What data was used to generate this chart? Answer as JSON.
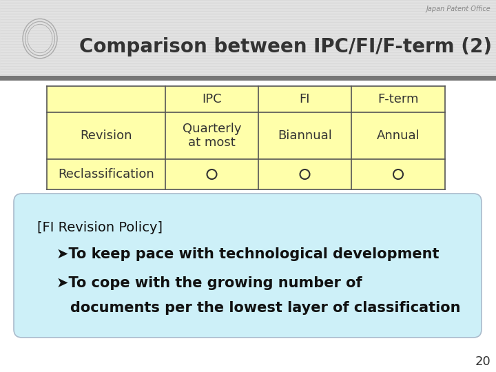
{
  "title": "Comparison between IPC/FI/F-term (2)",
  "watermark": "Japan Patent Office",
  "bg_color": "#ffffff",
  "header_line_color": "#cccccc",
  "header_bg": "#d8d8d8",
  "dark_band_color": "#888888",
  "table_bg": "#ffffaa",
  "table_border": "#555555",
  "box_bg": "#cdf0f8",
  "box_border": "#aacccc",
  "title_color": "#333333",
  "table_headers": [
    "",
    "IPC",
    "FI",
    "F-term"
  ],
  "table_rows": [
    [
      "Revision",
      "Quarterly\nat most",
      "Biannual",
      "Annual"
    ],
    [
      "Reclassification",
      "o",
      "o",
      "o"
    ]
  ],
  "box_line0": "[FI Revision Policy]",
  "box_line1": "➤To keep pace with technological development",
  "box_line2": "➤To cope with the growing number of",
  "box_line3": "   documents per the lowest layer of classification",
  "page_number": "20"
}
